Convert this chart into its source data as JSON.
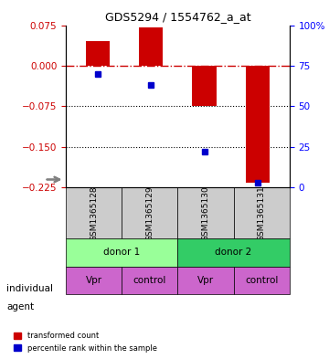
{
  "title": "GDS5294 / 1554762_a_at",
  "bar_values": [
    0.045,
    0.07,
    -0.075,
    -0.215
  ],
  "percentile_values": [
    70,
    63,
    22,
    3
  ],
  "categories": [
    "GSM1365128",
    "GSM1365129",
    "GSM1365130",
    "GSM1365131"
  ],
  "ylim_left": [
    -0.225,
    0.075
  ],
  "ylim_right": [
    0,
    100
  ],
  "left_ticks": [
    0.075,
    0,
    -0.075,
    -0.15,
    -0.225
  ],
  "right_ticks": [
    100,
    75,
    50,
    25,
    0
  ],
  "bar_color": "#cc0000",
  "dot_color": "#0000cc",
  "individual_labels": [
    "donor 1",
    "donor 1",
    "donor 2",
    "donor 2"
  ],
  "individual_groups": [
    [
      "GSM1365128",
      "GSM1365129"
    ],
    [
      "GSM1365130",
      "GSM1365131"
    ]
  ],
  "individual_group_labels": [
    "donor 1",
    "donor 2"
  ],
  "individual_colors": [
    "#99ff99",
    "#33cc66"
  ],
  "agent_labels": [
    "Vpr",
    "control",
    "Vpr",
    "control"
  ],
  "agent_color": "#cc66cc",
  "label_row1": "individual",
  "label_row2": "agent",
  "legend_bar_label": "transformed count",
  "legend_dot_label": "percentile rank within the sample",
  "gsm_bg_color": "#cccccc",
  "zero_line_color": "#cc0000",
  "grid_color": "#000000",
  "background_color": "#ffffff"
}
